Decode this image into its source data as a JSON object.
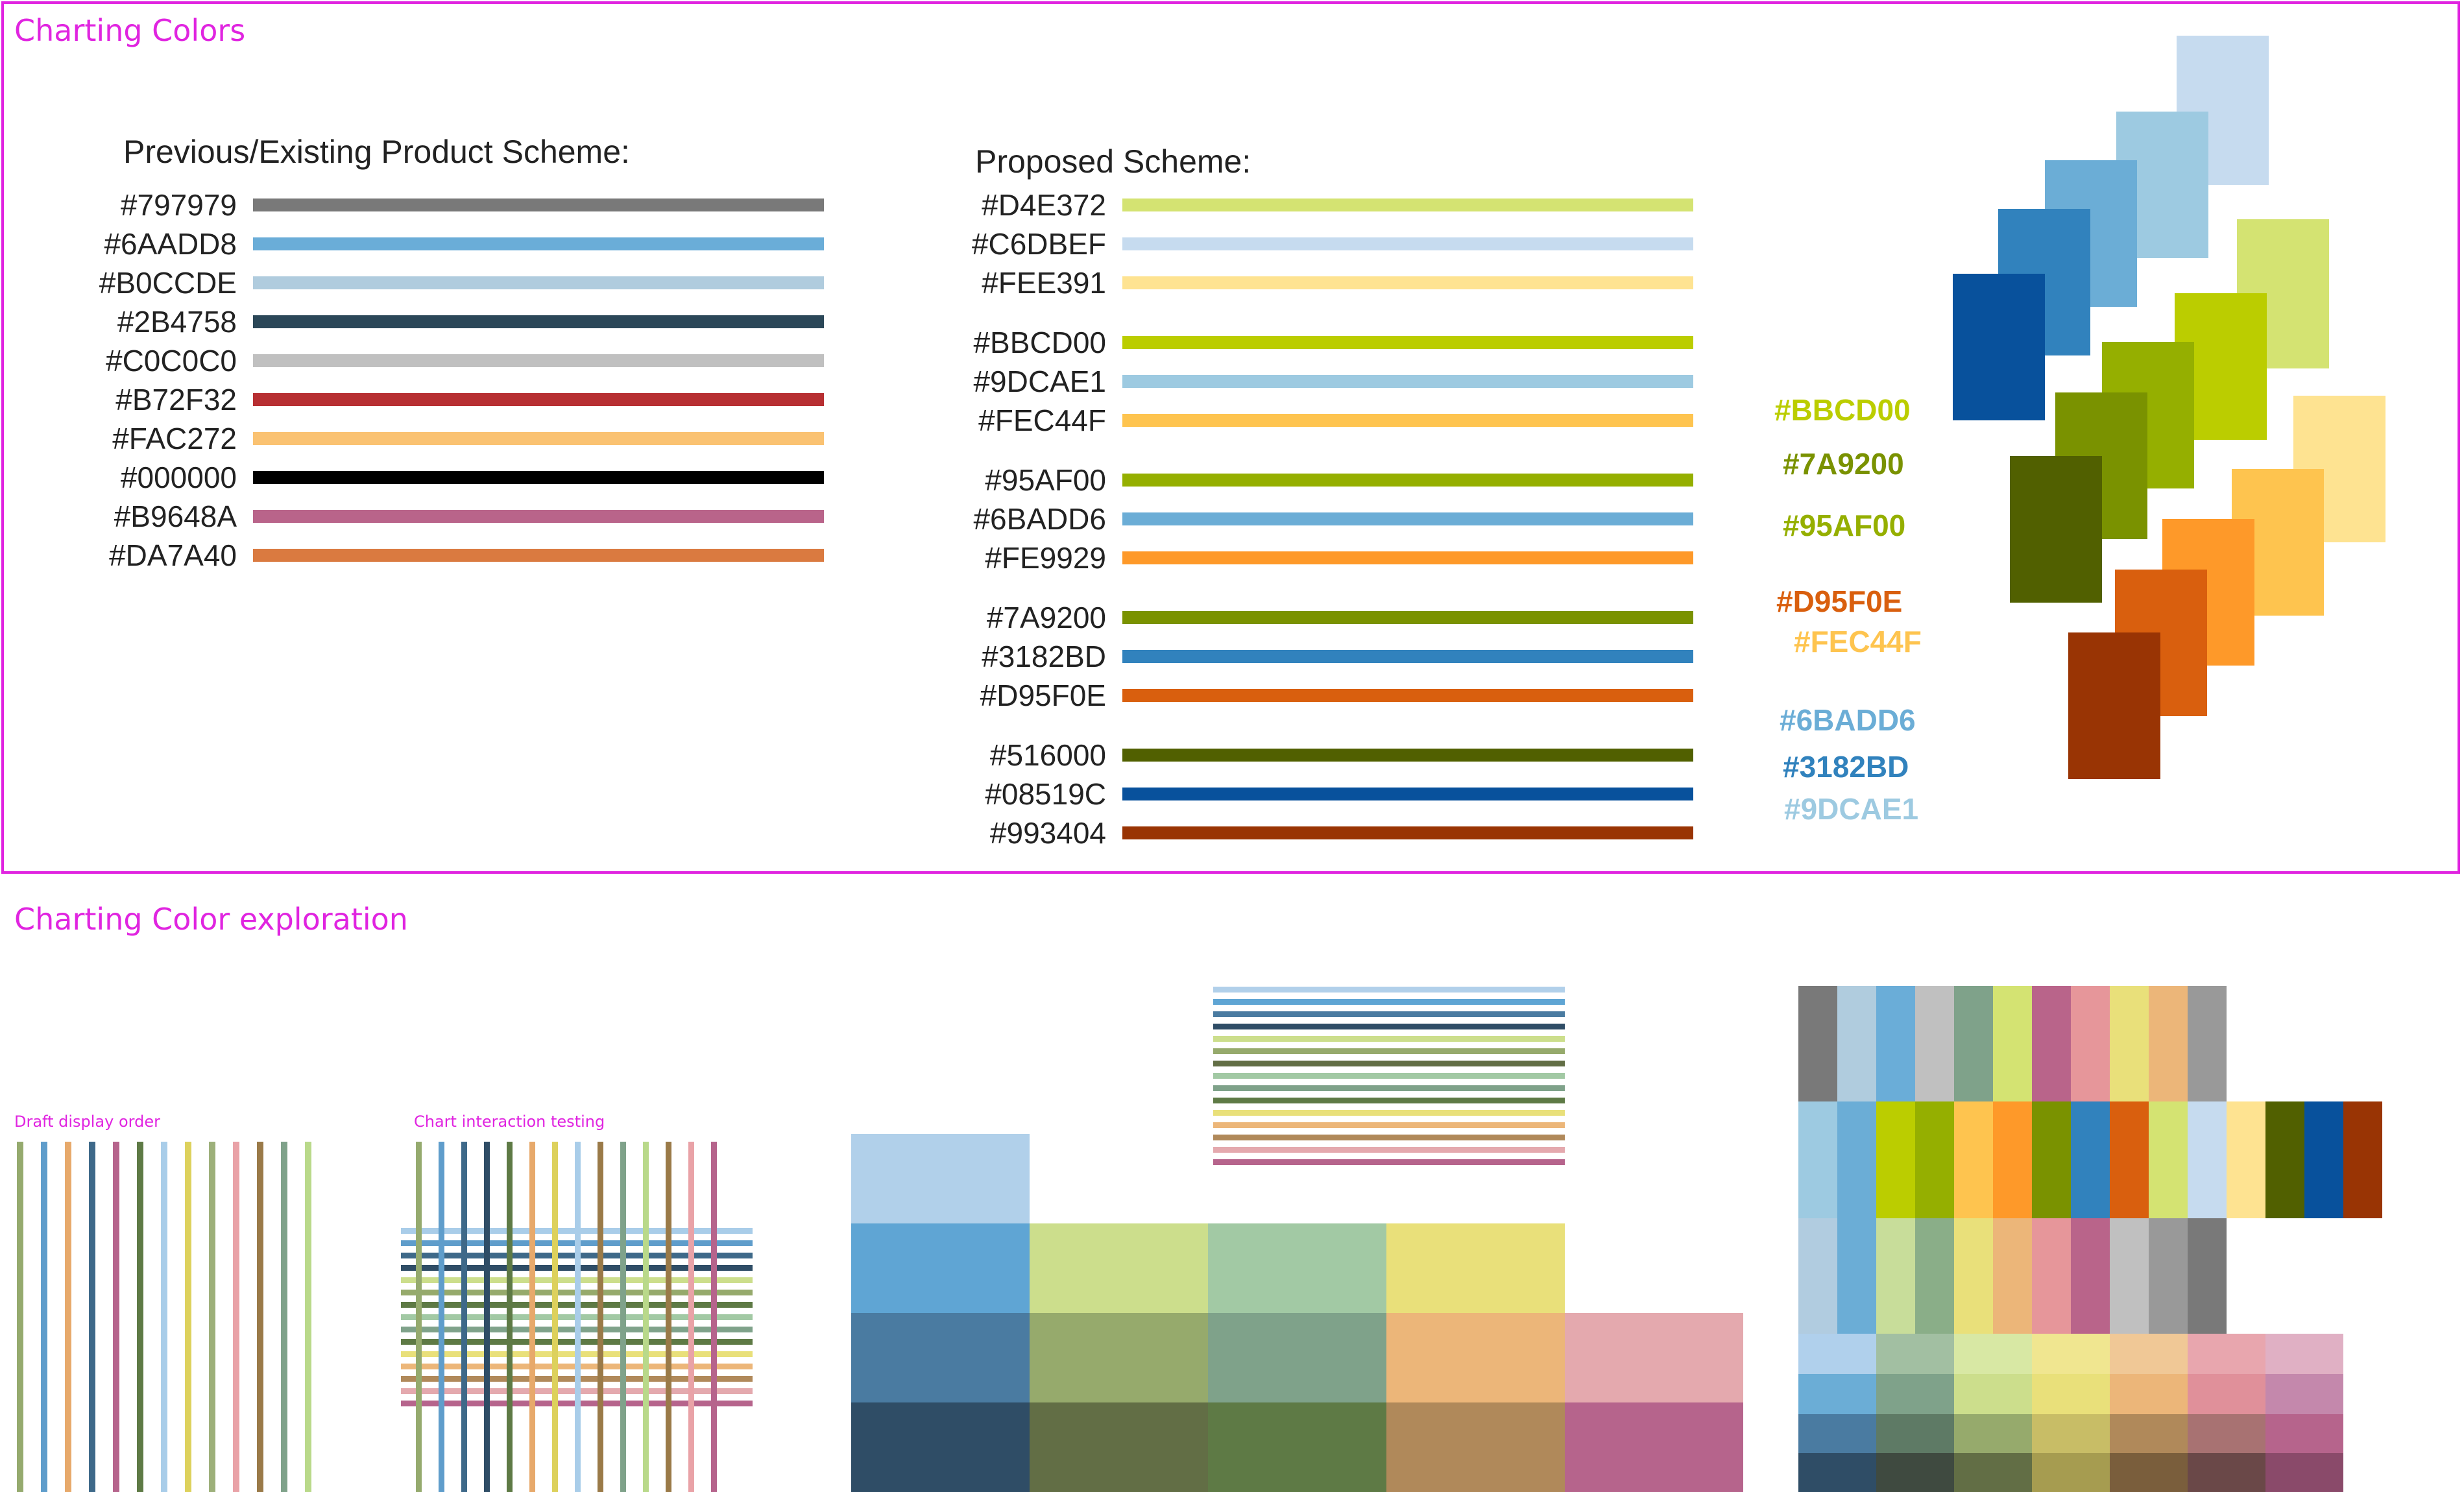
{
  "top_section": {
    "title": "Charting Colors",
    "previous_scheme": {
      "heading": "Previous/Existing Product Scheme:",
      "colors": [
        "#797979",
        "#6AADD8",
        "#B0CCDE",
        "#2B4758",
        "#C0C0C0",
        "#B72F32",
        "#FAC272",
        "#000000",
        "#B9648A",
        "#DA7A40"
      ]
    },
    "proposed_scheme": {
      "heading": "Proposed Scheme:",
      "groups": [
        [
          "#D4E372",
          "#C6DBEF",
          "#FEE391"
        ],
        [
          "#BBCD00",
          "#9DCAE1",
          "#FEC44F"
        ],
        [
          "#95AF00",
          "#6BADD6",
          "#FE9929"
        ],
        [
          "#7A9200",
          "#3182BD",
          "#D95F0E"
        ],
        [
          "#516000",
          "#08519C",
          "#993404"
        ]
      ]
    },
    "callouts": [
      "#BBCD00",
      "#7A9200",
      "#95AF00",
      "#D95F0E",
      "#FEC44F",
      "#6BADD6",
      "#3182BD",
      "#9DCAE1"
    ]
  },
  "bottom_section": {
    "title": "Charting Color exploration",
    "draft_display_order_label": "Draft display order",
    "chart_interaction_label": "Chart interaction testing"
  },
  "colors": {
    "accent": "#e024e0",
    "draft_lines": [
      "#95AA6E",
      "#5F9DCB",
      "#E7A96B",
      "#3E6989",
      "#B6648C",
      "#5E7A45",
      "#A9CDE9",
      "#DDD15C",
      "#9DB07A",
      "#E9A2A7",
      "#9A7A48",
      "#7FA28A",
      "#B9D98A"
    ],
    "interaction_vertical": [
      "#95AA6E",
      "#5F9DCB",
      "#3E6989",
      "#2F4D66",
      "#5E7A45",
      "#E7A96B",
      "#DDD15C",
      "#A9CDE9",
      "#9A7A48",
      "#7FA28A",
      "#B9D98A",
      "#9A7A48",
      "#E9A2A7",
      "#B6648C"
    ],
    "interaction_horizontal": [
      "#A9CDE9",
      "#5F9DCB",
      "#3E6989",
      "#2F4D66",
      "#CCDE8C",
      "#96AA6C",
      "#5E7A45",
      "#A2C9A4",
      "#7FA28A",
      "#5E7A45",
      "#E9E07A",
      "#ECB679",
      "#B0895A",
      "#E4A9AE",
      "#B6648C"
    ],
    "small_lines": [
      "#B1D0EA",
      "#5FA5D4",
      "#4A7BA1",
      "#2F4D66",
      "#CCDE8C",
      "#96AA6C",
      "#626E45",
      "#A2C9A4",
      "#7FA28A",
      "#5E7A45",
      "#E9E07A",
      "#ECB679",
      "#B0895A",
      "#E4A9AE",
      "#B6648C"
    ],
    "block_columns": [
      [
        "#B1D0EA",
        "#5FA5D4",
        "#4A7BA1",
        "#2F4D66"
      ],
      [
        "#CCDE8C",
        "#96AA6C",
        "#626E45"
      ],
      [
        "#A2C9A4",
        "#7FA28A",
        "#5E7A45"
      ],
      [
        "#E9E07A",
        "#ECB679",
        "#B0895A"
      ],
      [
        "#E4A9AE",
        "#B6648C"
      ]
    ],
    "grid_row1": [
      "#797979",
      "#B0CCDE",
      "#6AADD8",
      "#C0C0C0",
      "#7FA28A",
      "#D4E372",
      "#B9648A",
      "#E6969A",
      "#E9E07A",
      "#ECB679",
      "#999999"
    ],
    "grid_row2": [
      "#9DCAE1",
      "#6BADD6",
      "#BBCD00",
      "#95AF00",
      "#FEC44F",
      "#FE9929",
      "#7A9200",
      "#3182BD",
      "#D95F0E",
      "#D4E372",
      "#C6DBEF",
      "#FEE391",
      "#516000",
      "#08519C",
      "#993404"
    ],
    "grid_row3": [
      "#B1CCE0",
      "#6BADD6",
      "#C8DD9A",
      "#8AAE88",
      "#E9E07A",
      "#ECB679",
      "#E6969A",
      "#B9648A",
      "#C0C0C0",
      "#999999",
      "#797979"
    ],
    "grid_row4": [
      "#B0D0EC",
      "#A2BFA2",
      "#D8E8A4",
      "#F0E690",
      "#F0C896",
      "#E8A6AE",
      "#E0B0C4"
    ],
    "grid_row5": [
      "#6BADD6",
      "#7FA28A",
      "#CCDE8C",
      "#E9E07A",
      "#ECB679",
      "#E0909A",
      "#C488AC"
    ],
    "grid_row6": [
      "#4A7BA1",
      "#5E7A65",
      "#96AA6C",
      "#C8BD66",
      "#B0895A",
      "#A87272",
      "#B6648C"
    ],
    "grid_row7": [
      "#2F4D66",
      "#3F4A40",
      "#626E45",
      "#A69C50",
      "#7A5E3C",
      "#6A4848",
      "#8A4A6A"
    ]
  }
}
